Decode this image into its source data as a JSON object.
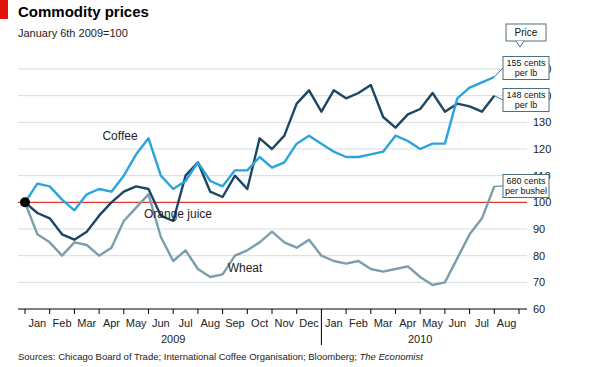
{
  "chart_data": {
    "type": "line",
    "title": "Commodity prices",
    "subtitle": "January 6th 2009=100",
    "categories": [
      "Jan",
      null,
      "Feb",
      null,
      "Mar",
      null,
      "Apr",
      null,
      "May",
      null,
      "Jun",
      null,
      "Jul",
      null,
      "Aug",
      null,
      "Sep",
      null,
      "Oct",
      null,
      "Nov",
      null,
      "Dec",
      null,
      "Jan",
      null,
      "Feb",
      null,
      "Mar",
      null,
      "Apr",
      null,
      "May",
      null,
      "Jun",
      null,
      "Jul",
      null,
      "Aug"
    ],
    "x_groups": [
      {
        "label": "2009",
        "start": 0,
        "end": 24
      },
      {
        "label": "2010",
        "start": 24,
        "end": 40
      }
    ],
    "series": [
      {
        "name": "Coffee",
        "color": "#2ba3dc",
        "values": [
          100,
          107,
          106,
          101,
          97,
          103,
          105,
          104,
          110,
          118,
          124,
          110,
          105,
          108,
          115,
          108,
          106,
          112,
          112,
          117,
          113,
          115,
          122,
          125,
          122,
          119,
          117,
          117,
          118,
          119,
          125,
          123,
          120,
          122,
          122,
          139,
          143,
          145,
          147
        ]
      },
      {
        "name": "Orange juice",
        "color": "#1d4663",
        "values": [
          100,
          96,
          94,
          88,
          86,
          89,
          95,
          100,
          104,
          106,
          105,
          95,
          93,
          110,
          115,
          104,
          102,
          110,
          105,
          124,
          120,
          125,
          137,
          142,
          134,
          142,
          139,
          141,
          144,
          132,
          128,
          133,
          135,
          141,
          134,
          137,
          136,
          134,
          140
        ]
      },
      {
        "name": "Wheat",
        "color": "#7c9dab",
        "values": [
          100,
          88,
          85,
          80,
          85,
          84,
          80,
          83,
          93,
          98,
          103,
          87,
          78,
          82,
          75,
          72,
          73,
          80,
          82,
          85,
          89,
          85,
          83,
          86,
          80,
          78,
          77,
          78,
          75,
          74,
          75,
          76,
          72,
          69,
          70,
          79,
          88,
          94,
          106
        ]
      }
    ],
    "price_header": "Price",
    "price_labels": [
      [
        "155 cents",
        "per lb"
      ],
      [
        "148 cents",
        "per lb"
      ],
      [
        "680 cents",
        "per bushel"
      ]
    ],
    "baseline": 100,
    "ylim": [
      60,
      150
    ],
    "yticks": [
      60,
      70,
      80,
      90,
      100,
      110,
      120,
      130,
      140,
      150
    ],
    "grid": true,
    "source": [
      "Sources: Chicago Board of Trade; International Coffee Organisation; Bloomberg; ",
      "The Economist"
    ]
  }
}
